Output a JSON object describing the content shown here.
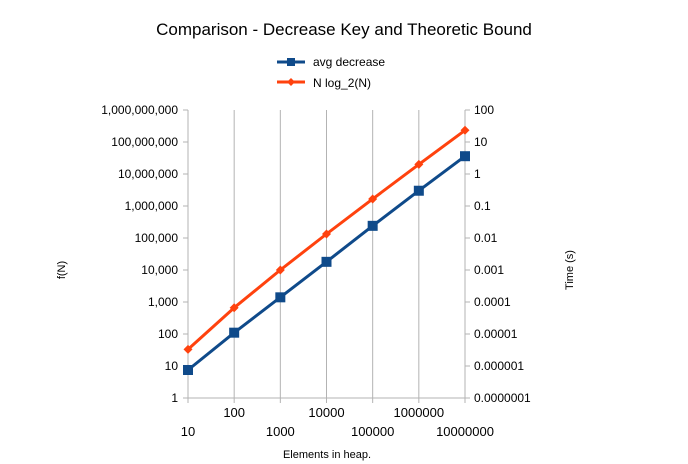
{
  "chart_data": {
    "type": "line",
    "title": "Comparison - Decrease Key and Theoretic Bound",
    "xlabel": "Elements in heap.",
    "ylabel_left": "f(N)",
    "ylabel_right": "Time (s)",
    "x_scale": "log",
    "y_left_scale": "log",
    "y_right_scale": "log",
    "x": [
      10,
      100,
      1000,
      10000,
      100000,
      1000000,
      10000000
    ],
    "xlim": [
      10,
      10000000
    ],
    "x_tick_labels": [
      "10",
      "100",
      "1000",
      "10000",
      "100000",
      "1000000",
      "10000000"
    ],
    "y_left_lim": [
      1,
      1000000000
    ],
    "y_left_tick_labels": [
      "1",
      "10",
      "100",
      "1,000",
      "10,000",
      "100,000",
      "1,000,000",
      "10,000,000",
      "100,000,000",
      "1,000,000,000"
    ],
    "y_right_lim": [
      1e-07,
      100
    ],
    "y_right_tick_labels": [
      "0.0000001",
      "0.000001",
      "0.00001",
      "0.0001",
      "0.001",
      "0.01",
      "0.1",
      "1",
      "10",
      "100"
    ],
    "grid": "vertical",
    "legend_position": "top-center",
    "series": [
      {
        "name": "avg decrease",
        "axis": "right",
        "color": "#0f4a8a",
        "marker": "square",
        "values": [
          7.5e-07,
          1.1e-05,
          0.00014,
          0.0018,
          0.024,
          0.3,
          3.6
        ]
      },
      {
        "name": "N log_2(N)",
        "axis": "left",
        "color": "#ff420e",
        "marker": "diamond",
        "values": [
          33,
          664,
          9966,
          132877,
          1660964,
          19931569,
          232534967
        ]
      }
    ]
  }
}
